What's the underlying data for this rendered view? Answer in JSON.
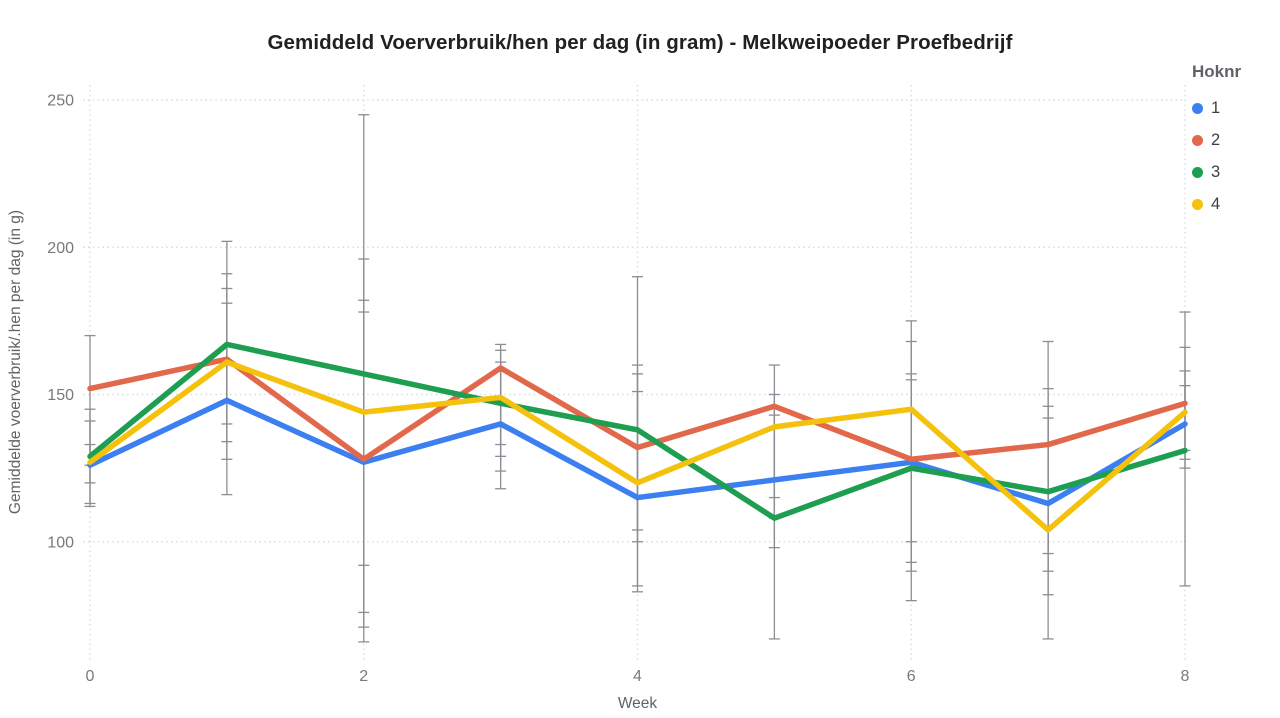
{
  "title": "Gemiddeld Voerverbruik/hen per dag (in gram) - Melkweipoeder Proefbedrijf",
  "legend": {
    "title": "Hoknr",
    "items": [
      {
        "label": "1",
        "color": "#3B7FF0"
      },
      {
        "label": "2",
        "color": "#E2684B"
      },
      {
        "label": "3",
        "color": "#1D9E50"
      },
      {
        "label": "4",
        "color": "#F4C20D"
      }
    ]
  },
  "colors": {
    "title_text": "#212121",
    "axis_text": "#77797e",
    "axis_label_text": "#5f6368",
    "gridline": "#d9dce0",
    "error_bar": "#8b8e94",
    "background": "#ffffff"
  },
  "chart_data": {
    "type": "line",
    "title": "Gemiddeld Voerverbruik/hen per dag (in gram) - Melkweipoeder Proefbedrijf",
    "xlabel": "Week",
    "ylabel": "Gemiddelde voerverbruik/.hen per dag (in g)",
    "legend_title": "Hoknr",
    "legend_position": "top-right",
    "grid": "dotted",
    "x": [
      0,
      1,
      2,
      3,
      4,
      5,
      6,
      7,
      8
    ],
    "x_ticks": [
      0,
      2,
      4,
      6,
      8
    ],
    "y_ticks": [
      250,
      200,
      150,
      100
    ],
    "ylim": [
      60,
      255
    ],
    "series": [
      {
        "name": "1",
        "color": "#3B7FF0",
        "values": [
          126,
          148,
          127,
          140,
          115,
          121,
          127,
          113,
          140
        ]
      },
      {
        "name": "2",
        "color": "#E2684B",
        "values": [
          152,
          162,
          128,
          159,
          132,
          146,
          128,
          133,
          147
        ]
      },
      {
        "name": "3",
        "color": "#1D9E50",
        "values": [
          129,
          167,
          157,
          147,
          138,
          108,
          125,
          117,
          131
        ]
      },
      {
        "name": "4",
        "color": "#F4C20D",
        "values": [
          127,
          161,
          144,
          149,
          120,
          139,
          145,
          104,
          144
        ]
      }
    ],
    "error_bars": [
      {
        "week": 0,
        "bars": [
          [
            112,
            170
          ],
          [
            113,
            145
          ],
          [
            120,
            141
          ],
          [
            126,
            133
          ]
        ]
      },
      {
        "week": 1,
        "bars": [
          [
            116,
            202
          ],
          [
            128,
            191
          ],
          [
            134,
            186
          ],
          [
            140,
            181
          ]
        ]
      },
      {
        "week": 2,
        "bars": [
          [
            66,
            245
          ],
          [
            71,
            196
          ],
          [
            76,
            182
          ],
          [
            92,
            178
          ]
        ]
      },
      {
        "week": 3,
        "bars": [
          [
            118,
            167
          ],
          [
            124,
            165
          ],
          [
            129,
            161
          ],
          [
            133,
            158
          ]
        ]
      },
      {
        "week": 4,
        "bars": [
          [
            83,
            190
          ],
          [
            85,
            160
          ],
          [
            100,
            157
          ],
          [
            104,
            151
          ]
        ]
      },
      {
        "week": 5,
        "bars": [
          [
            67,
            160
          ],
          [
            98,
            150
          ],
          [
            108,
            146
          ],
          [
            115,
            143
          ]
        ]
      },
      {
        "week": 6,
        "bars": [
          [
            80,
            175
          ],
          [
            90,
            168
          ],
          [
            93,
            157
          ],
          [
            100,
            155
          ]
        ]
      },
      {
        "week": 7,
        "bars": [
          [
            67,
            168
          ],
          [
            82,
            152
          ],
          [
            90,
            146
          ],
          [
            96,
            142
          ]
        ]
      },
      {
        "week": 8,
        "bars": [
          [
            85,
            178
          ],
          [
            125,
            166
          ],
          [
            128,
            158
          ],
          [
            131,
            153
          ]
        ]
      }
    ]
  }
}
